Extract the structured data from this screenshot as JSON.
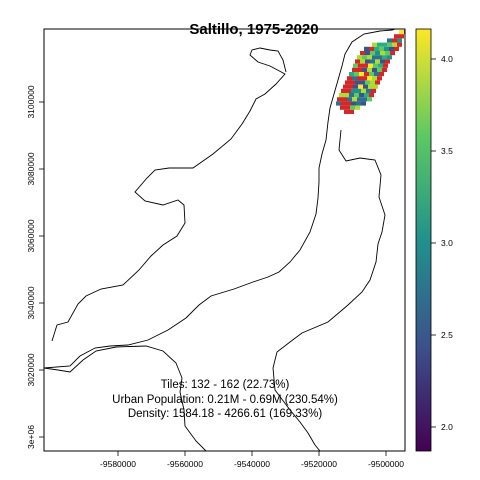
{
  "title": "Saltillo, 1975-2020",
  "x_axis": {
    "ticks": [
      "-9580000",
      "-9560000",
      "-9540000",
      "-9520000",
      "-9500000"
    ]
  },
  "y_axis": {
    "ticks": [
      "3e+06",
      "3020000",
      "3040000",
      "3060000",
      "3080000",
      "3100000"
    ]
  },
  "colorbar": {
    "ticks": [
      "2.0",
      "2.5",
      "3.0",
      "3.5",
      "4.0"
    ],
    "range": [
      1.85,
      4.18
    ],
    "palette": [
      "#440154",
      "#3b528b",
      "#21918c",
      "#5ec962",
      "#fde725"
    ]
  },
  "annotations": {
    "tiles": "Tiles: 132 - 162 (22.73%)",
    "population": "Urban Population: 0.21M - 0.69M (230.54%)",
    "density": "Density: 1584.18 - 4266.61 (169.33%)"
  },
  "colors": {
    "new_tile": "#d62728",
    "boundary": "#000000"
  },
  "chart_data": {
    "type": "map",
    "title": "Saltillo, 1975-2020",
    "xlim": [
      -9598000,
      -9494000
    ],
    "ylim": [
      2997000,
      3114000
    ],
    "colorbar_range": [
      1.85,
      4.18
    ],
    "legend_placement": "right"
  }
}
